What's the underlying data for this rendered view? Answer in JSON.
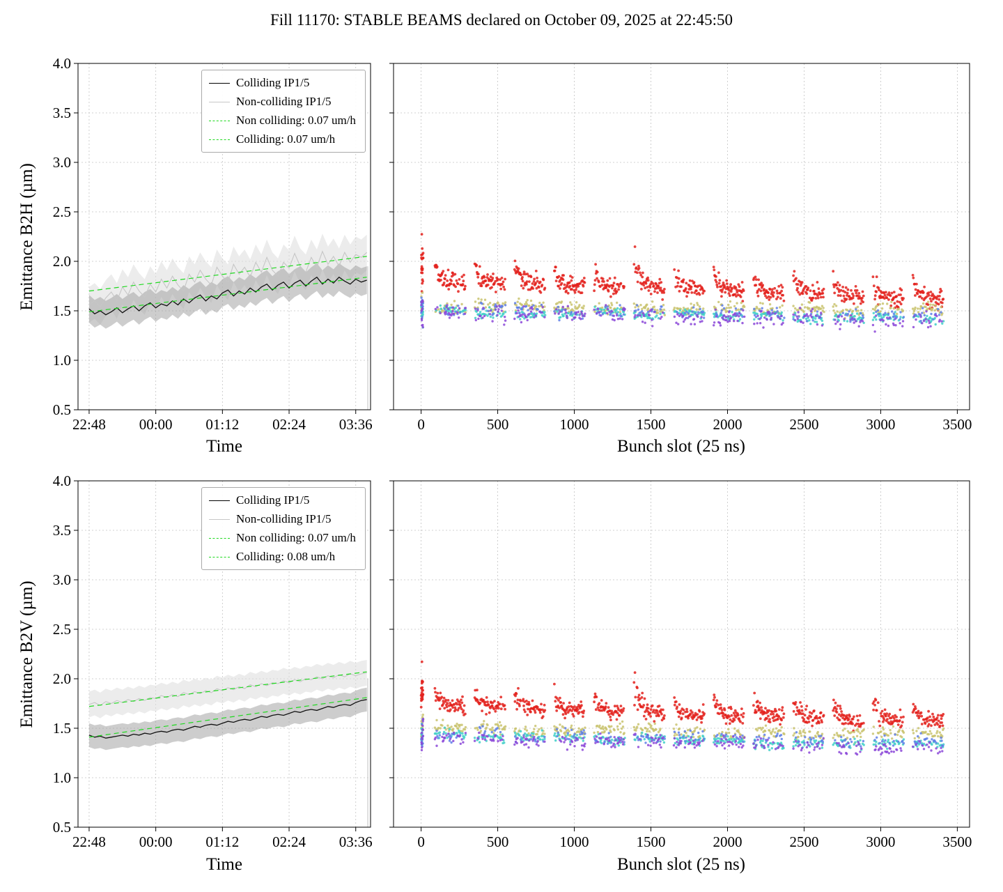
{
  "figure": {
    "title": "Fill 11170: STABLE BEAMS declared on October 09, 2025 at 22:45:50",
    "background": "#ffffff"
  },
  "colors": {
    "colliding": "#111111",
    "colliding_band": "#9c9c9c",
    "noncolliding": "#c6c6c6",
    "noncolliding_band": "#dcdcdc",
    "trend": "#1fd91f",
    "grid": "#c3c3c3",
    "scatter": {
      "red": "#e3211c",
      "khaki": "#c9c36e",
      "turquoise": "#40d0c8",
      "blue": "#5f7fe8",
      "purple": "#8b46d8"
    }
  },
  "chart_data": [
    {
      "id": "b2h-time",
      "type": "line",
      "xlabel": "Time",
      "ylabel": "Emittance B2H (µm)",
      "xlim": [
        -12,
        304
      ],
      "ylim": [
        0.5,
        4.0
      ],
      "yticks": [
        0.5,
        1.0,
        1.5,
        2.0,
        2.5,
        3.0,
        3.5,
        4.0
      ],
      "xticks": [
        {
          "v": 0,
          "label": "22:48"
        },
        {
          "v": 72,
          "label": "00:00"
        },
        {
          "v": 144,
          "label": "01:12"
        },
        {
          "v": 216,
          "label": "02:24"
        },
        {
          "v": 288,
          "label": "03:36"
        }
      ],
      "legend": [
        {
          "label": "Colliding IP1/5"
        },
        {
          "label": "Non-colliding IP1/5"
        },
        {
          "label": "Non colliding: 0.07 um/h"
        },
        {
          "label": "Colliding: 0.07 um/h"
        }
      ],
      "x": [
        0,
        6,
        12,
        18,
        24,
        30,
        36,
        42,
        48,
        54,
        60,
        66,
        72,
        78,
        84,
        90,
        96,
        102,
        108,
        114,
        120,
        126,
        132,
        138,
        144,
        150,
        156,
        162,
        168,
        174,
        180,
        186,
        192,
        198,
        204,
        210,
        216,
        222,
        228,
        234,
        240,
        246,
        252,
        258,
        264,
        270,
        276,
        282,
        288,
        294,
        300
      ],
      "colliding": {
        "mean": [
          1.52,
          1.47,
          1.5,
          1.46,
          1.49,
          1.53,
          1.48,
          1.52,
          1.55,
          1.5,
          1.55,
          1.58,
          1.53,
          1.57,
          1.55,
          1.6,
          1.56,
          1.62,
          1.58,
          1.63,
          1.66,
          1.6,
          1.65,
          1.62,
          1.68,
          1.71,
          1.65,
          1.7,
          1.67,
          1.73,
          1.69,
          1.74,
          1.77,
          1.71,
          1.76,
          1.79,
          1.73,
          1.78,
          1.81,
          1.75,
          1.8,
          1.84,
          1.77,
          1.82,
          1.78,
          1.84,
          1.8,
          1.77,
          1.82,
          1.79,
          1.81
        ],
        "band": 0.14
      },
      "noncolliding": {
        "mean": [
          1.56,
          1.6,
          1.54,
          1.63,
          1.69,
          1.6,
          1.74,
          1.66,
          1.79,
          1.7,
          1.64,
          1.77,
          1.69,
          1.82,
          1.73,
          1.85,
          1.76,
          1.7,
          1.87,
          1.79,
          1.91,
          1.82,
          1.76,
          1.94,
          1.85,
          1.79,
          1.97,
          1.87,
          1.94,
          1.84,
          1.99,
          1.89,
          2.04,
          1.91,
          1.85,
          1.99,
          1.93,
          2.08,
          1.95,
          1.89,
          2.04,
          1.94,
          2.1,
          1.97,
          2.05,
          1.95,
          2.09,
          1.99,
          2.07,
          2.04,
          2.09
        ],
        "band": 0.18
      },
      "trends": [
        {
          "x0": 0,
          "y0": 1.7,
          "x1": 300,
          "y1": 2.05
        },
        {
          "x0": 0,
          "y0": 1.49,
          "x1": 300,
          "y1": 1.84
        }
      ],
      "drop": {
        "x": 301,
        "y1": 1.95,
        "y2": 0.2
      }
    },
    {
      "id": "b2h-bunch",
      "type": "scatter",
      "xlabel": "Bunch slot (25 ns)",
      "ylabel": "",
      "xlim": [
        -180,
        3580
      ],
      "ylim": [
        0.5,
        4.0
      ],
      "yticks": [
        0.5,
        1.0,
        1.5,
        2.0,
        2.5,
        3.0,
        3.5,
        4.0
      ],
      "xticks": [
        {
          "v": 0,
          "label": "0"
        },
        {
          "v": 500,
          "label": "500"
        },
        {
          "v": 1000,
          "label": "1000"
        },
        {
          "v": 1500,
          "label": "1500"
        },
        {
          "v": 2000,
          "label": "2000"
        },
        {
          "v": 2500,
          "label": "2500"
        },
        {
          "v": 3000,
          "label": "3000"
        },
        {
          "v": 3500,
          "label": "3500"
        }
      ],
      "seed": 20251009,
      "spike_train": 6,
      "trains": [
        [
          0,
          8
        ],
        [
          90,
          290
        ],
        [
          350,
          550
        ],
        [
          610,
          810
        ],
        [
          870,
          1070
        ],
        [
          1130,
          1330
        ],
        [
          1390,
          1590
        ],
        [
          1650,
          1850
        ],
        [
          1910,
          2110
        ],
        [
          2170,
          2370
        ],
        [
          2430,
          2630
        ],
        [
          2690,
          2890
        ],
        [
          2950,
          3150
        ],
        [
          3210,
          3410
        ]
      ],
      "groups": [
        {
          "name": "red",
          "m0": 1.8,
          "m1": 1.6,
          "spread": 0.09,
          "head": 0.18,
          "density": 0.85,
          "step": 3,
          "r": 1.9
        },
        {
          "name": "khaki",
          "m0": 1.56,
          "m1": 1.49,
          "spread": 0.06,
          "density": 0.6,
          "step": 4,
          "r": 1.7
        },
        {
          "name": "turquoise",
          "m0": 1.5,
          "m1": 1.41,
          "spread": 0.05,
          "density": 0.6,
          "step": 4,
          "r": 1.7
        },
        {
          "name": "blue",
          "m0": 1.52,
          "m1": 1.44,
          "spread": 0.06,
          "density": 0.3,
          "step": 4,
          "r": 1.7
        },
        {
          "name": "purple",
          "m0": 1.49,
          "m1": 1.39,
          "spread": 0.08,
          "density": 0.45,
          "step": 4,
          "r": 1.7
        }
      ]
    },
    {
      "id": "b2v-time",
      "type": "line",
      "xlabel": "Time",
      "ylabel": "Emittance B2V (µm)",
      "xlim": [
        -12,
        304
      ],
      "ylim": [
        0.5,
        4.0
      ],
      "yticks": [
        0.5,
        1.0,
        1.5,
        2.0,
        2.5,
        3.0,
        3.5,
        4.0
      ],
      "xticks": [
        {
          "v": 0,
          "label": "22:48"
        },
        {
          "v": 72,
          "label": "00:00"
        },
        {
          "v": 144,
          "label": "01:12"
        },
        {
          "v": 216,
          "label": "02:24"
        },
        {
          "v": 288,
          "label": "03:36"
        }
      ],
      "legend": [
        {
          "label": "Colliding IP1/5"
        },
        {
          "label": "Non-colliding IP1/5"
        },
        {
          "label": "Non colliding: 0.07 um/h"
        },
        {
          "label": "Colliding: 0.08 um/h"
        }
      ],
      "x": [
        0,
        6,
        12,
        18,
        24,
        30,
        36,
        42,
        48,
        54,
        60,
        66,
        72,
        78,
        84,
        90,
        96,
        102,
        108,
        114,
        120,
        126,
        132,
        138,
        144,
        150,
        156,
        162,
        168,
        174,
        180,
        186,
        192,
        198,
        204,
        210,
        216,
        222,
        228,
        234,
        240,
        246,
        252,
        258,
        264,
        270,
        276,
        282,
        288,
        294,
        300
      ],
      "colliding": {
        "mean": [
          1.43,
          1.41,
          1.42,
          1.4,
          1.41,
          1.42,
          1.43,
          1.42,
          1.44,
          1.43,
          1.45,
          1.44,
          1.46,
          1.47,
          1.46,
          1.48,
          1.49,
          1.48,
          1.5,
          1.52,
          1.51,
          1.53,
          1.54,
          1.53,
          1.55,
          1.57,
          1.56,
          1.58,
          1.59,
          1.58,
          1.6,
          1.62,
          1.61,
          1.63,
          1.64,
          1.63,
          1.65,
          1.67,
          1.66,
          1.68,
          1.69,
          1.68,
          1.7,
          1.72,
          1.71,
          1.73,
          1.74,
          1.73,
          1.76,
          1.78,
          1.79
        ],
        "band": 0.12
      },
      "noncolliding": {
        "mean": [
          1.74,
          1.76,
          1.73,
          1.77,
          1.75,
          1.78,
          1.76,
          1.79,
          1.77,
          1.8,
          1.78,
          1.81,
          1.8,
          1.83,
          1.81,
          1.84,
          1.82,
          1.86,
          1.84,
          1.87,
          1.85,
          1.88,
          1.86,
          1.9,
          1.88,
          1.91,
          1.89,
          1.92,
          1.9,
          1.94,
          1.92,
          1.95,
          1.93,
          1.96,
          1.95,
          1.98,
          1.96,
          1.99,
          1.97,
          2.0,
          1.99,
          2.02,
          2.0,
          2.03,
          2.01,
          2.04,
          2.02,
          2.05,
          2.03,
          2.05,
          2.06
        ],
        "band": 0.13
      },
      "trends": [
        {
          "x0": 0,
          "y0": 1.72,
          "x1": 300,
          "y1": 2.07
        },
        {
          "x0": 0,
          "y0": 1.41,
          "x1": 300,
          "y1": 1.81
        }
      ],
      "drop": {
        "x": 301,
        "y1": 2.0,
        "y2": 0.2
      }
    },
    {
      "id": "b2v-bunch",
      "type": "scatter",
      "xlabel": "Bunch slot (25 ns)",
      "ylabel": "",
      "xlim": [
        -180,
        3580
      ],
      "ylim": [
        0.5,
        4.0
      ],
      "yticks": [
        0.5,
        1.0,
        1.5,
        2.0,
        2.5,
        3.0,
        3.5,
        4.0
      ],
      "xticks": [
        {
          "v": 0,
          "label": "0"
        },
        {
          "v": 500,
          "label": "500"
        },
        {
          "v": 1000,
          "label": "1000"
        },
        {
          "v": 1500,
          "label": "1500"
        },
        {
          "v": 2000,
          "label": "2000"
        },
        {
          "v": 2500,
          "label": "2500"
        },
        {
          "v": 3000,
          "label": "3000"
        },
        {
          "v": 3500,
          "label": "3500"
        }
      ],
      "seed": 1117022,
      "spike_train": 6,
      "trains": [
        [
          0,
          8
        ],
        [
          90,
          290
        ],
        [
          350,
          550
        ],
        [
          610,
          810
        ],
        [
          870,
          1070
        ],
        [
          1130,
          1330
        ],
        [
          1390,
          1590
        ],
        [
          1650,
          1850
        ],
        [
          1910,
          2110
        ],
        [
          2170,
          2370
        ],
        [
          2430,
          2630
        ],
        [
          2690,
          2890
        ],
        [
          2950,
          3150
        ],
        [
          3210,
          3410
        ]
      ],
      "groups": [
        {
          "name": "red",
          "m0": 1.72,
          "m1": 1.55,
          "spread": 0.08,
          "head": 0.16,
          "density": 0.85,
          "step": 3,
          "r": 1.9
        },
        {
          "name": "khaki",
          "m0": 1.5,
          "m1": 1.43,
          "spread": 0.06,
          "density": 0.6,
          "step": 4,
          "r": 1.7
        },
        {
          "name": "turquoise",
          "m0": 1.42,
          "m1": 1.32,
          "spread": 0.05,
          "density": 0.6,
          "step": 4,
          "r": 1.7
        },
        {
          "name": "blue",
          "m0": 1.45,
          "m1": 1.36,
          "spread": 0.06,
          "density": 0.3,
          "step": 4,
          "r": 1.7
        },
        {
          "name": "purple",
          "m0": 1.42,
          "m1": 1.28,
          "spread": 0.07,
          "density": 0.45,
          "step": 4,
          "r": 1.7
        }
      ]
    }
  ]
}
